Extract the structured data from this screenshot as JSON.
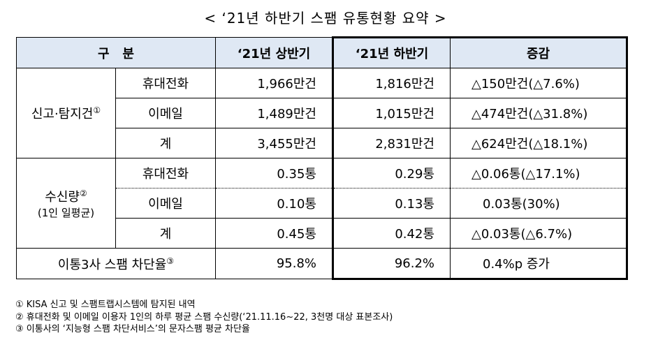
{
  "title": "< ‘21년 하반기 스팸 유통현황 요약 >",
  "headers": [
    "구   분",
    "‘21년 상반기",
    "‘21년 하반기",
    "증감"
  ],
  "groups": [
    {
      "label": "신고·탐지건",
      "mark": "①",
      "sublabel": "",
      "rows": [
        {
          "item": "휴대전화",
          "h1": "1,966만건",
          "h2": "1,816만건",
          "change": "△150만건(△7.6%)"
        },
        {
          "item": "이메일",
          "h1": "1,489만건",
          "h2": "1,015만건",
          "change": "△474만건(△31.8%)"
        },
        {
          "item": "계",
          "h1": "3,455만건",
          "h2": "2,831만건",
          "change": "△624만건(△18.1%)"
        }
      ]
    },
    {
      "label": "수신량",
      "mark": "②",
      "sublabel": "(1인 일평균)",
      "rows": [
        {
          "item": "휴대전화",
          "h1": "0.35통",
          "h2": "0.29통",
          "change": "△0.06통(△17.1%)"
        },
        {
          "item": "이메일",
          "h1": "0.10통",
          "h2": "0.13통",
          "change": "0.03통(30%)"
        },
        {
          "item": "계",
          "h1": "0.45통",
          "h2": "0.42통",
          "change": "△0.03통(△6.7%)"
        }
      ]
    }
  ],
  "block_rate": {
    "label": "이통3사 스팸 차단율",
    "mark": "③",
    "h1": "95.8%",
    "h2": "96.2%",
    "change": "0.4%p 증가"
  },
  "footnotes": [
    "①  KISA 신고 및 스팸트랩시스템에 탐지된 내역",
    "②  휴대전화 및 이메일 이용자 1인의 하루 평균 스팸 수신량(‘21.11.16~22, 3천명 대상 표본조사)",
    "③  이통사의 ‘지능형 스팸 차단서비스’의 문자스팸 평균 차단율"
  ],
  "colors": {
    "header_bg": "#dfe8f4"
  }
}
